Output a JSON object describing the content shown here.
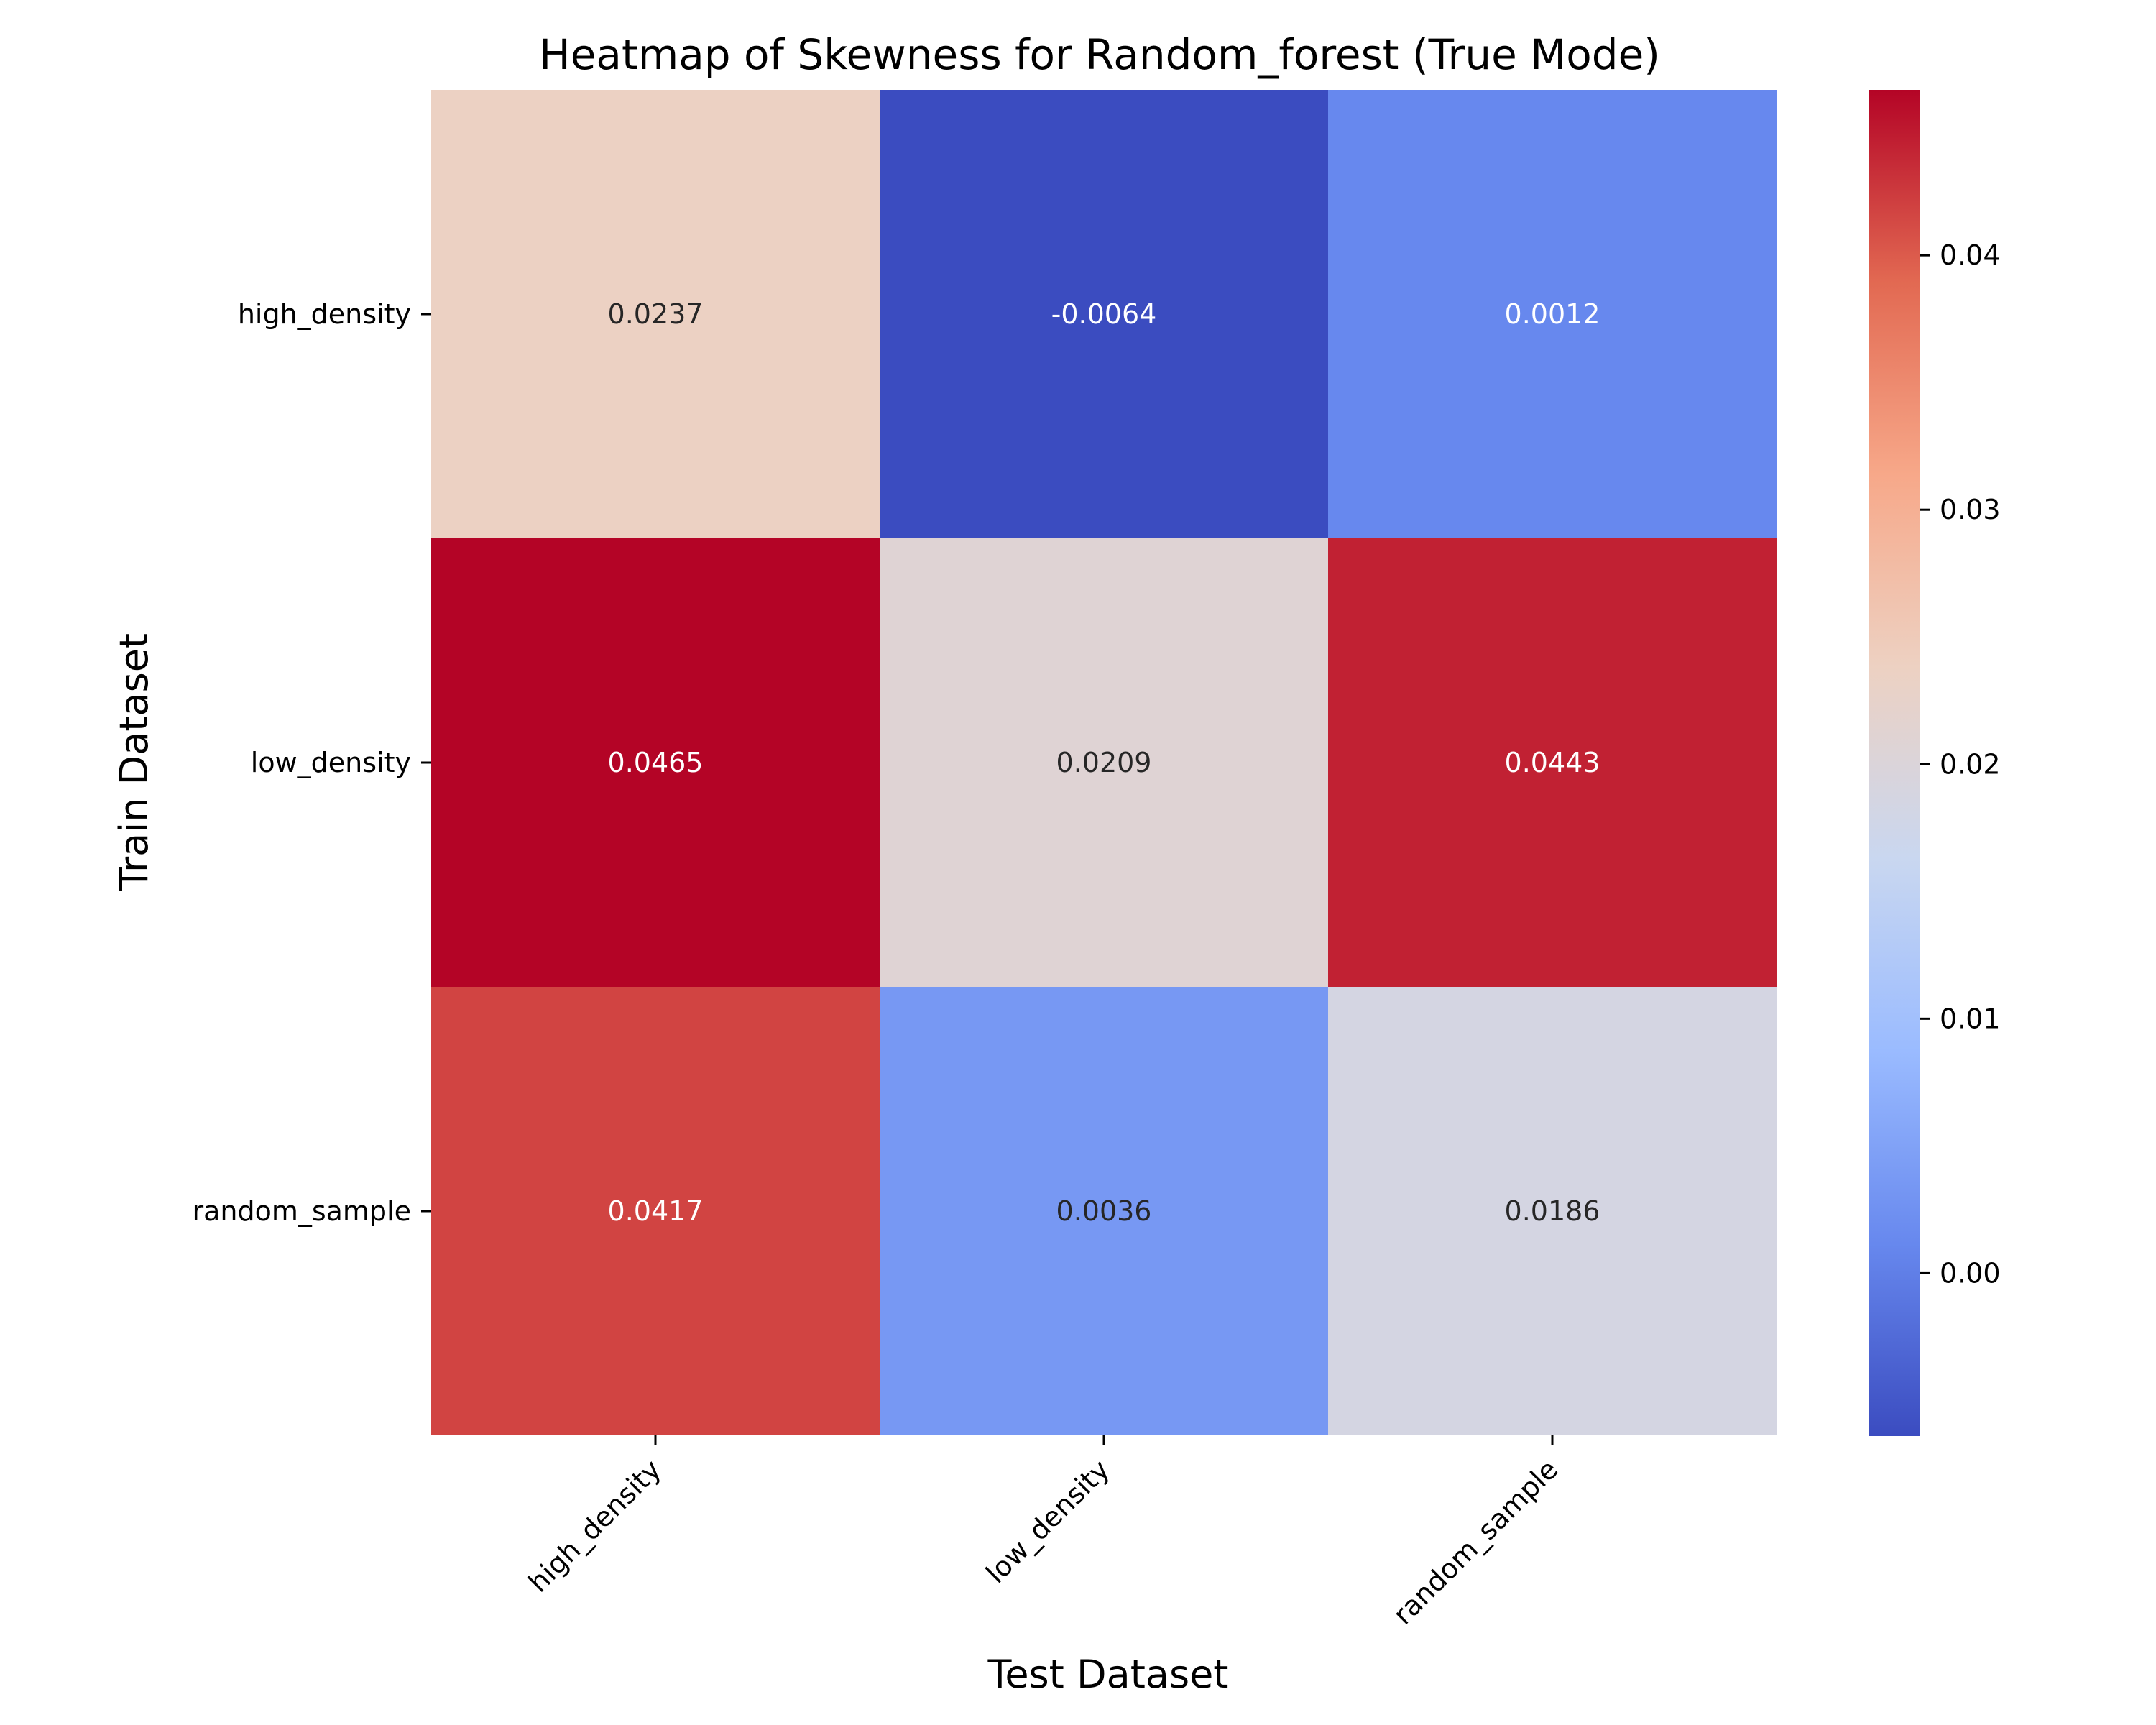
{
  "chart_data": {
    "type": "heatmap",
    "title": "Heatmap of Skewness for Random_forest (True Mode)",
    "xlabel": "Test Dataset",
    "ylabel": "Train Dataset",
    "x_categories": [
      "high_density",
      "low_density",
      "random_sample"
    ],
    "y_categories": [
      "high_density",
      "low_density",
      "random_sample"
    ],
    "values": [
      [
        0.0237,
        -0.0064,
        0.0012
      ],
      [
        0.0465,
        0.0209,
        0.0443
      ],
      [
        0.0417,
        0.0036,
        0.0186
      ]
    ],
    "value_labels": [
      [
        "0.0237",
        "-0.0064",
        "0.0012"
      ],
      [
        "0.0465",
        "0.0209",
        "0.0443"
      ],
      [
        "0.0417",
        "0.0036",
        "0.0186"
      ]
    ],
    "colormap": "coolwarm",
    "colorbar": {
      "vmin": -0.0064,
      "vmax": 0.0465,
      "ticks": [
        0.0,
        0.01,
        0.02,
        0.03,
        0.04
      ],
      "tick_labels": [
        "0.00",
        "0.01",
        "0.02",
        "0.03",
        "0.04"
      ]
    },
    "colormap_stops": [
      "#3b4cc0",
      "#6788ee",
      "#9abbff",
      "#c9d7f0",
      "#edd1c2",
      "#f7a889",
      "#e26952",
      "#b40426"
    ]
  }
}
